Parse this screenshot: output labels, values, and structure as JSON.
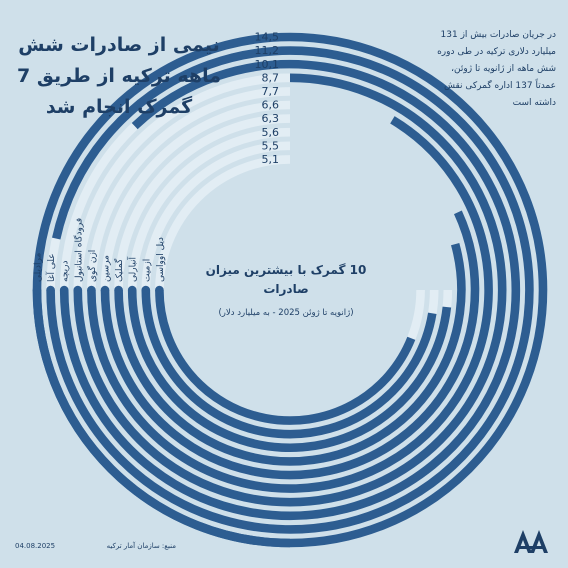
{
  "title": "نیمی از صادرات شش ماهه ترکیه از طریق 7 گمرک انجام شد",
  "note": "در جریان صادرات بیش از 131 میلیارد دلاری ترکیه در طی دوره شش ماهه از ژانویه تا ژوئن، عمدتاً 137 اداره گمرکی نقش داشته است",
  "center_title": "10 گمرک با بیشترین میزان صادرات",
  "center_subtitle": "(ژانویه تا ژوئن 2025 - به میلیارد دلار)",
  "footer": {
    "source": "منبع: سازمان آمار ترکیه",
    "date": "04.08.2025"
  },
  "colors": {
    "background": "#cfe0ea",
    "bar": "#2d5d91",
    "track": "#e2edf4",
    "text": "#1e3f66"
  },
  "chart_data": {
    "type": "bar",
    "orientation": "radial",
    "unit": "میلیارد دلار",
    "categories": [
      "مرادیلی",
      "علی آغا",
      "دریچه",
      "فرودگاه استانبول",
      "ازن گوی",
      "مرسین",
      "گملیک",
      "آنبارلی",
      "ازمیت",
      "دیل اوواسی"
    ],
    "values": [
      14.5,
      11.2,
      10.1,
      8.7,
      7.7,
      6.6,
      6.3,
      5.6,
      5.5,
      5.1
    ],
    "value_labels": [
      "14,5",
      "11,2",
      "10,1",
      "8,7",
      "7,7",
      "6,6",
      "6,3",
      "5,6",
      "5,5",
      "5,1"
    ]
  }
}
